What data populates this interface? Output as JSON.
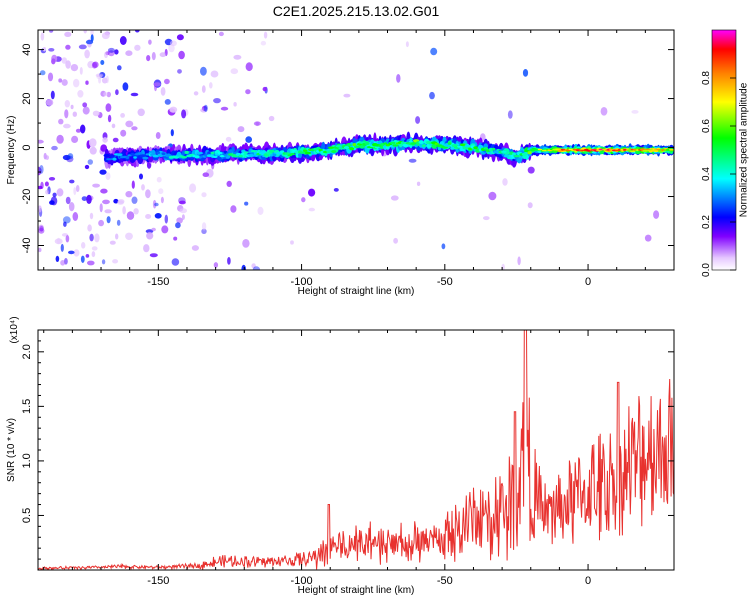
{
  "title": "C2E1.2025.215.13.02.G01",
  "chart_data": [
    {
      "type": "heatmap",
      "xlabel": "Height of straight line (km)",
      "ylabel": "Frequency (Hz)",
      "xlim": [
        -192,
        30
      ],
      "ylim": [
        -50,
        48
      ],
      "xticks": [
        -150,
        -100,
        -50,
        0
      ],
      "yticks": [
        -40,
        -20,
        0,
        20,
        40
      ],
      "colorbar": {
        "label": "Normalized spectral amplitude",
        "range": [
          0,
          1
        ],
        "ticks": [
          "0.0",
          "0.2",
          "0.4",
          "0.6",
          "0.8"
        ],
        "colormap": [
          "#ffffff",
          "#e6c8ff",
          "#8000ff",
          "#0000ff",
          "#00ffff",
          "#00ff00",
          "#ffff00",
          "#ff8000",
          "#ff0000",
          "#ff00ff"
        ]
      },
      "ridge": {
        "x": [
          -168,
          -160,
          -150,
          -140,
          -130,
          -120,
          -110,
          -100,
          -90,
          -80,
          -70,
          -60,
          -50,
          -40,
          -30,
          -25,
          -20,
          -15,
          -10,
          -5,
          0,
          10,
          20,
          30
        ],
        "center_hz": [
          -4,
          -3.5,
          -3,
          -3,
          -3,
          -2.5,
          -2.5,
          -2,
          -1,
          1,
          1,
          2,
          1,
          0,
          -2,
          -4,
          -1,
          -1,
          -1,
          -1,
          -1,
          -1,
          -1,
          -1
        ],
        "peak_amplitude": [
          0.3,
          0.35,
          0.35,
          0.4,
          0.4,
          0.45,
          0.45,
          0.5,
          0.5,
          0.55,
          0.55,
          0.55,
          0.5,
          0.5,
          0.45,
          0.45,
          0.6,
          0.7,
          0.8,
          0.9,
          0.85,
          0.85,
          0.8,
          0.75
        ]
      }
    },
    {
      "type": "line",
      "xlabel": "Height of straight line (km)",
      "ylabel": "SNR (10 * v/v)",
      "scale_label": "(x10⁴)",
      "xlim": [
        -192,
        30
      ],
      "ylim": [
        0,
        2.2
      ],
      "xticks": [
        -150,
        -100,
        -50,
        0
      ],
      "yticks": [
        "0.5",
        "1.0",
        "1.5",
        "2.0"
      ],
      "series": [
        {
          "color": "#e8312e",
          "x": [
            -192,
            -170,
            -165,
            -150,
            -135,
            -130,
            -120,
            -110,
            -100,
            -95,
            -90,
            -85,
            -80,
            -70,
            -60,
            -50,
            -45,
            -40,
            -35,
            -30,
            -25,
            -23,
            -22,
            -20,
            -15,
            -10,
            -5,
            0,
            5,
            10,
            15,
            20,
            25,
            30
          ],
          "y": [
            0.02,
            0.03,
            0.04,
            0.03,
            0.05,
            0.1,
            0.1,
            0.1,
            0.12,
            0.15,
            0.25,
            0.3,
            0.3,
            0.3,
            0.3,
            0.35,
            0.5,
            0.55,
            0.6,
            0.7,
            0.8,
            1.2,
            2.2,
            0.9,
            0.6,
            0.7,
            0.8,
            0.9,
            0.95,
            1.1,
            1.2,
            1.3,
            1.4,
            1.5
          ]
        }
      ]
    }
  ]
}
